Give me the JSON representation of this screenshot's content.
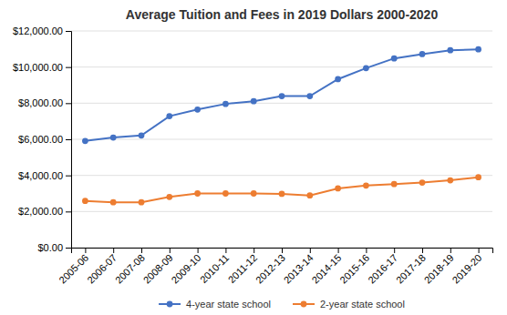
{
  "chart_data": {
    "type": "line",
    "title": "Average Tuition and Fees in 2019 Dollars 2000-2020",
    "categories": [
      "2005-06",
      "2006-07",
      "2007-08",
      "2008-09",
      "2009-10",
      "2010-11",
      "2011-12",
      "2012-13",
      "2013-14",
      "2014-15",
      "2015-16",
      "2016-17",
      "2017-18",
      "2018-19",
      "2019-20"
    ],
    "series": [
      {
        "name": "4-year state school",
        "color": "#4472C4",
        "marker": "circle",
        "values": [
          5910,
          6100,
          6210,
          7280,
          7650,
          7960,
          8110,
          8390,
          8390,
          9330,
          9940,
          10480,
          10720,
          10930,
          10980
        ]
      },
      {
        "name": "2-year state school",
        "color": "#ED7D31",
        "marker": "circle",
        "values": [
          2590,
          2510,
          2510,
          2810,
          3000,
          3000,
          3000,
          2980,
          2890,
          3280,
          3440,
          3520,
          3600,
          3730,
          3900
        ]
      }
    ],
    "ylim": [
      0,
      12000
    ],
    "yticks": [
      {
        "value": 0,
        "label": "$0.00"
      },
      {
        "value": 2000,
        "label": "$2,000.00"
      },
      {
        "value": 4000,
        "label": "$4,000.00"
      },
      {
        "value": 6000,
        "label": "$6,000.00"
      },
      {
        "value": 8000,
        "label": "$8,000.00"
      },
      {
        "value": 10000,
        "label": "$10,000.00"
      },
      {
        "value": 12000,
        "label": "$12,000.00"
      }
    ],
    "grid": true,
    "legend": "bottom"
  }
}
